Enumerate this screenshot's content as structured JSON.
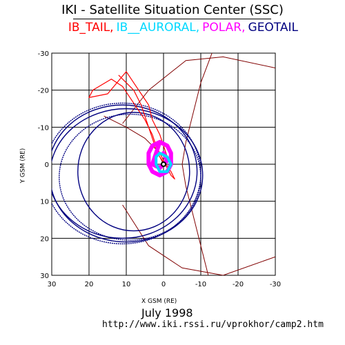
{
  "header": {
    "title": "IKI - Satellite Situation Center (SSC)"
  },
  "legend": [
    {
      "label": "IB_TAIL,",
      "color": "#ff0000"
    },
    {
      "label": "IB__AURORAL,",
      "color": "#00d8ff"
    },
    {
      "label": "POLAR,",
      "color": "#ff00ff"
    },
    {
      "label": "GEOTAIL",
      "color": "#000080"
    }
  ],
  "footer": {
    "date": "July    1998",
    "url": "http://www.iki.rssi.ru/vprokhor/camp2.htm"
  },
  "chart_data": {
    "type": "line",
    "xlabel": "X GSM (RE)",
    "ylabel": "Y GSM (RE)",
    "xlim": [
      30,
      -30
    ],
    "ylim": [
      -30,
      30
    ],
    "xticks": [
      "30",
      "20",
      "10",
      "0",
      "-10",
      "-20",
      "-30"
    ],
    "yticks": [
      "-30",
      "-20",
      "-10",
      "0",
      "10",
      "20",
      "30"
    ],
    "grid": true,
    "colors": {
      "geotail": "#000080",
      "ib_tail": "#ff0000",
      "polar": "#ff00ff",
      "ib_auroral": "#00d8ff",
      "boundaries": "#800000"
    },
    "series": [
      {
        "name": "GEOTAIL",
        "orbits": [
          {
            "cx": 11,
            "cy": 2,
            "rx": 20,
            "ry": 18
          },
          {
            "cx": 11,
            "cy": 2.5,
            "rx": 21,
            "ry": 19
          },
          {
            "cx": 10,
            "cy": 3,
            "rx": 20.5,
            "ry": 18
          },
          {
            "cx": 9,
            "cy": 3.5,
            "rx": 19,
            "ry": 17
          },
          {
            "cx": 8,
            "cy": 2,
            "rx": 15,
            "ry": 16
          }
        ]
      },
      {
        "name": "IB_TAIL",
        "points": [
          [
            12,
            -24
          ],
          [
            10,
            -22
          ],
          [
            8,
            -20
          ],
          [
            6,
            -16
          ],
          [
            5,
            -13
          ],
          [
            4,
            -10
          ],
          [
            3,
            -7
          ],
          [
            2,
            -4
          ],
          [
            1,
            -2
          ],
          [
            -1,
            1
          ],
          [
            -2,
            3
          ],
          [
            -3,
            4
          ],
          [
            -2,
            2
          ],
          [
            0,
            -1
          ],
          [
            2,
            -5
          ],
          [
            3,
            -8
          ],
          [
            5,
            -12
          ],
          [
            7,
            -15
          ],
          [
            9,
            -18
          ],
          [
            11,
            -21
          ],
          [
            14,
            -23
          ],
          [
            19,
            -20
          ],
          [
            20,
            -18
          ],
          [
            15,
            -19
          ],
          [
            10,
            -25
          ],
          [
            8,
            -22
          ],
          [
            6,
            -19
          ],
          [
            4,
            -16
          ],
          [
            3,
            -12
          ],
          [
            1,
            -8
          ],
          [
            0,
            -5
          ],
          [
            -1,
            -2
          ]
        ]
      },
      {
        "name": "POLAR",
        "points": [
          [
            1,
            -6
          ],
          [
            3,
            -5
          ],
          [
            4,
            -3
          ],
          [
            4,
            0
          ],
          [
            3,
            2
          ],
          [
            1,
            3
          ],
          [
            -1,
            2
          ],
          [
            -2,
            0
          ],
          [
            -2,
            -3
          ],
          [
            -1,
            -5
          ],
          [
            1,
            -6
          ],
          [
            2,
            -3
          ],
          [
            3,
            0
          ],
          [
            1,
            1
          ],
          [
            -1,
            -1
          ],
          [
            0,
            -3
          ]
        ]
      },
      {
        "name": "IB_AURORAL",
        "points": [
          [
            2,
            -2
          ],
          [
            1,
            -3
          ],
          [
            -1,
            -2
          ],
          [
            -2,
            0
          ],
          [
            -1,
            2
          ],
          [
            1,
            2
          ],
          [
            2,
            0
          ],
          [
            2,
            -2
          ]
        ]
      }
    ],
    "boundaries": [
      {
        "name": "magnetopause",
        "points": [
          [
            -13,
            -30
          ],
          [
            -10,
            -22
          ],
          [
            -8,
            -14
          ],
          [
            -6,
            -6
          ],
          [
            -5,
            0
          ],
          [
            -6,
            6
          ],
          [
            -8,
            14
          ],
          [
            -10,
            22
          ],
          [
            -12,
            30
          ]
        ]
      },
      {
        "name": "bow_shock_upper",
        "points": [
          [
            11,
            -11
          ],
          [
            4,
            -20
          ],
          [
            -6,
            -28
          ],
          [
            -16,
            -29
          ],
          [
            -30,
            -26
          ]
        ]
      },
      {
        "name": "bow_shock_lower",
        "points": [
          [
            11,
            11
          ],
          [
            4,
            22
          ],
          [
            -5,
            28
          ],
          [
            -16,
            30
          ],
          [
            -30,
            25
          ]
        ]
      },
      {
        "name": "inner_arc",
        "points": [
          [
            16,
            -13
          ],
          [
            10,
            -10
          ],
          [
            5,
            -7
          ],
          [
            2,
            -4
          ],
          [
            0,
            0
          ]
        ]
      }
    ]
  }
}
